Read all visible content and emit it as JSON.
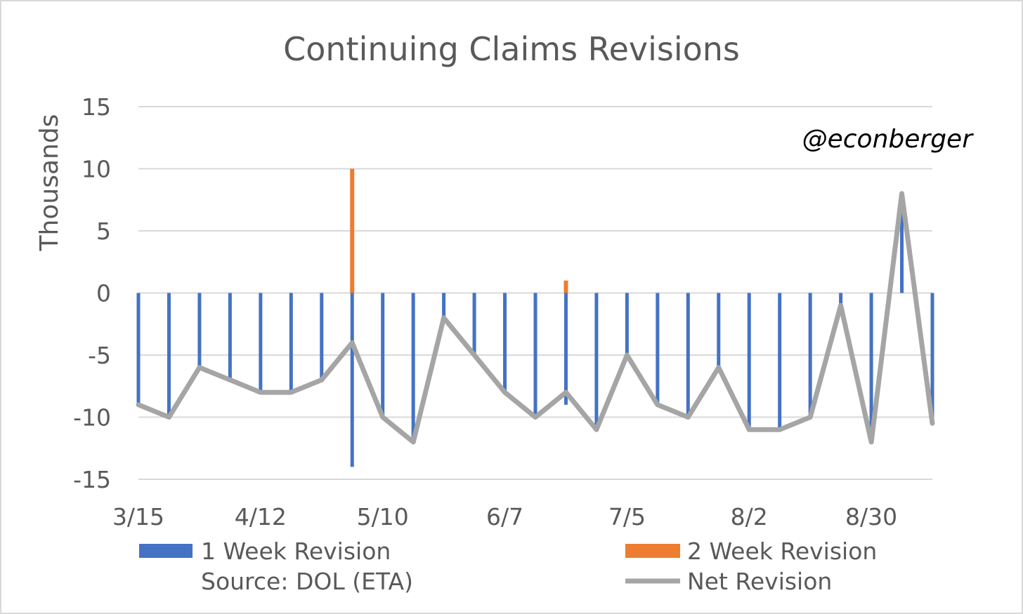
{
  "chart_data": {
    "type": "bar",
    "title": "Continuing Claims Revisions",
    "ylabel": "Thousands",
    "xlabel": "",
    "watermark": "@econberger",
    "source": "Source: DOL (ETA)",
    "ylim": [
      -15,
      15
    ],
    "yticks": [
      15,
      10,
      5,
      0,
      -5,
      -10,
      -15
    ],
    "x_tick_labels": [
      "3/15",
      "4/12",
      "5/10",
      "6/7",
      "7/5",
      "8/2",
      "8/30"
    ],
    "x_tick_every": 4,
    "grid": true,
    "legend_position": "bottom",
    "colors": {
      "one_week": "#4472c4",
      "two_week": "#ed7d31",
      "net": "#a5a5a5"
    },
    "series": [
      {
        "name": "1 Week Revision",
        "type": "bar",
        "values": [
          -9,
          -10,
          -6,
          -7,
          -8,
          -8,
          -7,
          -14,
          -10,
          -12,
          -2,
          -5,
          -8,
          -10,
          -9,
          -11,
          -5,
          -9,
          -10,
          -6,
          -11,
          -11,
          -10,
          -1,
          -12,
          7,
          -10.5
        ]
      },
      {
        "name": "2 Week Revision",
        "type": "bar",
        "values": [
          0,
          0,
          0,
          0,
          0,
          0,
          0,
          10,
          0,
          0,
          0,
          0,
          0,
          0,
          1,
          0,
          0,
          0,
          0,
          0,
          0,
          0,
          0,
          0,
          0,
          0,
          0
        ]
      },
      {
        "name": "Net Revision",
        "type": "line",
        "values": [
          -9,
          -10,
          -6,
          -7,
          -8,
          -8,
          -7,
          -4,
          -10,
          -12,
          -2,
          -5,
          -8,
          -10,
          -8,
          -11,
          -5,
          -9,
          -10,
          -6,
          -11,
          -11,
          -10,
          -1,
          -12,
          8,
          -10.5
        ]
      }
    ]
  }
}
